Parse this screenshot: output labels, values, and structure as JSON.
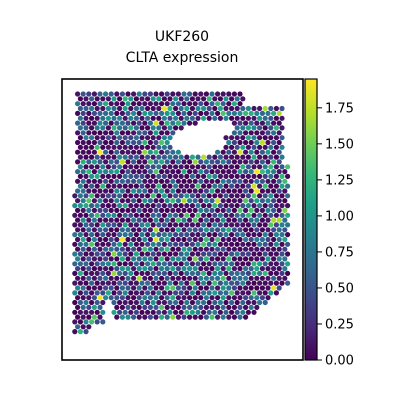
{
  "chart_data": {
    "type": "scatter",
    "plot_kind": "spatial transcriptomics spot map (hexagonal grid), colored by expression",
    "title": "UKF260",
    "subtitle": "CLTA expression",
    "xlabel": "",
    "ylabel": "",
    "axes_ticks_visible": false,
    "grid": false,
    "colormap": "viridis",
    "colorbar": {
      "position": "right",
      "range": [
        0.0,
        1.95
      ],
      "ticks": [
        0.0,
        0.25,
        0.5,
        0.75,
        1.0,
        1.25,
        1.5,
        1.75
      ],
      "tick_labels": [
        "0.00",
        "0.25",
        "0.50",
        "0.75",
        "1.00",
        "1.25",
        "1.50",
        "1.75"
      ]
    },
    "value_distribution_note": "Most spots near 0.0 (dark purple); many 0.4–1.0; few > 1.5 (yellow).",
    "colors": {
      "viridis_stops": [
        "#440154",
        "#482878",
        "#3e4989",
        "#31688e",
        "#26828e",
        "#1f9e89",
        "#35b779",
        "#6ece58",
        "#b5de2b",
        "#fde725"
      ],
      "frame": "#000000",
      "background": "#ffffff"
    }
  }
}
